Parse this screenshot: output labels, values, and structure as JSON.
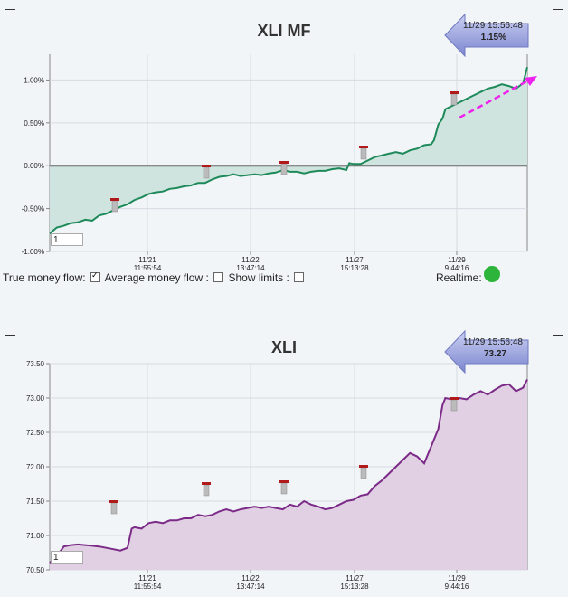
{
  "colors": {
    "mf_line": "#1e8a5a",
    "mf_fill": "#cfe4df",
    "price_line": "#7b2b87",
    "price_fill": "#e1d0e3",
    "trend_arrow": "#ee22ee",
    "realtime_on": "#2db43a"
  },
  "money_flow": {
    "title": "XLI MF",
    "callout": {
      "time": "11/29 15:56:48",
      "value": "1.15%"
    },
    "period_input": "1",
    "controls": {
      "true_mf_label": "True money flow:",
      "avg_mf_label": "Average money flow :",
      "show_limits_label": "Show limits :",
      "true_mf_checked": true,
      "avg_mf_checked": false,
      "show_limits_checked": false
    },
    "realtime_label": "Realtime:"
  },
  "price": {
    "title": "XLI",
    "callout": {
      "time": "11/29 15:56:48",
      "value": "73.27"
    },
    "period_input": "1"
  },
  "chart_data": [
    {
      "type": "area",
      "title": "XLI MF",
      "ylim": [
        -1.0,
        1.3
      ],
      "y_ticks": [
        "1.00%",
        "0.50%",
        "0.00%",
        "-0.50%",
        "-1.00%"
      ],
      "y_tick_values": [
        1.0,
        0.5,
        0.0,
        -0.5,
        -1.0
      ],
      "x_ticks": [
        {
          "date": "11/21",
          "time": "11:55:54",
          "x": 0.25
        },
        {
          "date": "11/22",
          "time": "13:47:14",
          "x": 0.5
        },
        {
          "date": "11/27",
          "time": "15:13:28",
          "x": 0.75
        },
        {
          "date": "11/29",
          "time": "9:44:16",
          "x": 1.0
        }
      ],
      "grid": true,
      "baseline": 0,
      "points": [
        [
          0,
          -0.79
        ],
        [
          0.05,
          -0.72
        ],
        [
          0.1,
          -0.7
        ],
        [
          0.15,
          -0.67
        ],
        [
          0.2,
          -0.66
        ],
        [
          0.25,
          -0.63
        ],
        [
          0.3,
          -0.64
        ],
        [
          0.35,
          -0.58
        ],
        [
          0.4,
          -0.56
        ],
        [
          0.45,
          -0.52
        ],
        [
          0.5,
          -0.48
        ],
        [
          0.55,
          -0.45
        ],
        [
          0.6,
          -0.4
        ],
        [
          0.65,
          -0.37
        ],
        [
          0.7,
          -0.33
        ],
        [
          0.75,
          -0.31
        ],
        [
          0.8,
          -0.3
        ],
        [
          0.85,
          -0.27
        ],
        [
          0.9,
          -0.26
        ],
        [
          0.95,
          -0.24
        ],
        [
          1.0,
          -0.23
        ],
        [
          1.05,
          -0.2
        ],
        [
          1.1,
          -0.2
        ],
        [
          1.15,
          -0.16
        ],
        [
          1.2,
          -0.13
        ],
        [
          1.25,
          -0.12
        ],
        [
          1.3,
          -0.1
        ],
        [
          1.35,
          -0.12
        ],
        [
          1.4,
          -0.11
        ],
        [
          1.45,
          -0.1
        ],
        [
          1.5,
          -0.11
        ],
        [
          1.55,
          -0.09
        ],
        [
          1.6,
          -0.08
        ],
        [
          1.65,
          -0.05
        ],
        [
          1.7,
          -0.07
        ],
        [
          1.75,
          -0.07
        ],
        [
          1.8,
          -0.09
        ],
        [
          1.85,
          -0.07
        ],
        [
          1.9,
          -0.06
        ],
        [
          1.95,
          -0.06
        ],
        [
          2.0,
          -0.04
        ],
        [
          2.05,
          -0.03
        ],
        [
          2.1,
          -0.05
        ],
        [
          2.12,
          0.03
        ],
        [
          2.15,
          0.02
        ],
        [
          2.2,
          0.02
        ],
        [
          2.25,
          0.06
        ],
        [
          2.3,
          0.1
        ],
        [
          2.35,
          0.12
        ],
        [
          2.4,
          0.14
        ],
        [
          2.45,
          0.16
        ],
        [
          2.5,
          0.14
        ],
        [
          2.55,
          0.18
        ],
        [
          2.6,
          0.2
        ],
        [
          2.65,
          0.24
        ],
        [
          2.7,
          0.25
        ],
        [
          2.72,
          0.3
        ],
        [
          2.75,
          0.48
        ],
        [
          2.78,
          0.55
        ],
        [
          2.8,
          0.66
        ],
        [
          2.85,
          0.7
        ],
        [
          2.9,
          0.74
        ],
        [
          2.95,
          0.78
        ],
        [
          3.0,
          0.82
        ],
        [
          3.05,
          0.86
        ],
        [
          3.1,
          0.9
        ],
        [
          3.15,
          0.92
        ],
        [
          3.2,
          0.95
        ],
        [
          3.25,
          0.93
        ],
        [
          3.3,
          0.9
        ],
        [
          3.35,
          0.96
        ],
        [
          3.38,
          1.15
        ]
      ]
    },
    {
      "type": "area",
      "title": "XLI",
      "ylim": [
        70.5,
        73.5
      ],
      "y_ticks": [
        "73.50",
        "73.00",
        "72.50",
        "72.00",
        "71.50",
        "71.00",
        "70.50"
      ],
      "y_tick_values": [
        73.5,
        73.0,
        72.5,
        72.0,
        71.5,
        71.0,
        70.5
      ],
      "x_ticks": [
        {
          "date": "11/21",
          "time": "11:55:54",
          "x": 0.25
        },
        {
          "date": "11/22",
          "time": "13:47:14",
          "x": 0.5
        },
        {
          "date": "11/27",
          "time": "15:13:28",
          "x": 0.75
        },
        {
          "date": "11/29",
          "time": "9:44:16",
          "x": 1.0
        }
      ],
      "grid": true,
      "points": [
        [
          0,
          70.6
        ],
        [
          0.05,
          70.7
        ],
        [
          0.1,
          70.84
        ],
        [
          0.15,
          70.86
        ],
        [
          0.2,
          70.87
        ],
        [
          0.25,
          70.86
        ],
        [
          0.3,
          70.85
        ],
        [
          0.35,
          70.84
        ],
        [
          0.4,
          70.82
        ],
        [
          0.45,
          70.8
        ],
        [
          0.5,
          70.78
        ],
        [
          0.55,
          70.82
        ],
        [
          0.58,
          71.1
        ],
        [
          0.6,
          71.12
        ],
        [
          0.65,
          71.1
        ],
        [
          0.7,
          71.18
        ],
        [
          0.75,
          71.2
        ],
        [
          0.8,
          71.18
        ],
        [
          0.85,
          71.22
        ],
        [
          0.9,
          71.22
        ],
        [
          0.95,
          71.25
        ],
        [
          1.0,
          71.25
        ],
        [
          1.05,
          71.3
        ],
        [
          1.1,
          71.28
        ],
        [
          1.15,
          71.3
        ],
        [
          1.2,
          71.35
        ],
        [
          1.25,
          71.38
        ],
        [
          1.3,
          71.35
        ],
        [
          1.35,
          71.38
        ],
        [
          1.4,
          71.4
        ],
        [
          1.45,
          71.42
        ],
        [
          1.5,
          71.4
        ],
        [
          1.55,
          71.42
        ],
        [
          1.6,
          71.4
        ],
        [
          1.65,
          71.38
        ],
        [
          1.7,
          71.45
        ],
        [
          1.75,
          71.42
        ],
        [
          1.8,
          71.5
        ],
        [
          1.85,
          71.45
        ],
        [
          1.9,
          71.42
        ],
        [
          1.95,
          71.38
        ],
        [
          2.0,
          71.4
        ],
        [
          2.05,
          71.45
        ],
        [
          2.1,
          71.5
        ],
        [
          2.15,
          71.52
        ],
        [
          2.2,
          71.58
        ],
        [
          2.25,
          71.6
        ],
        [
          2.3,
          71.72
        ],
        [
          2.35,
          71.8
        ],
        [
          2.4,
          71.9
        ],
        [
          2.45,
          72.0
        ],
        [
          2.5,
          72.1
        ],
        [
          2.55,
          72.2
        ],
        [
          2.6,
          72.15
        ],
        [
          2.65,
          72.05
        ],
        [
          2.7,
          72.3
        ],
        [
          2.75,
          72.55
        ],
        [
          2.78,
          72.9
        ],
        [
          2.8,
          73.0
        ],
        [
          2.85,
          72.98
        ],
        [
          2.9,
          73.0
        ],
        [
          2.95,
          72.98
        ],
        [
          3.0,
          73.05
        ],
        [
          3.05,
          73.1
        ],
        [
          3.1,
          73.05
        ],
        [
          3.15,
          73.12
        ],
        [
          3.2,
          73.18
        ],
        [
          3.25,
          73.2
        ],
        [
          3.3,
          73.1
        ],
        [
          3.35,
          73.15
        ],
        [
          3.38,
          73.27
        ]
      ]
    }
  ]
}
